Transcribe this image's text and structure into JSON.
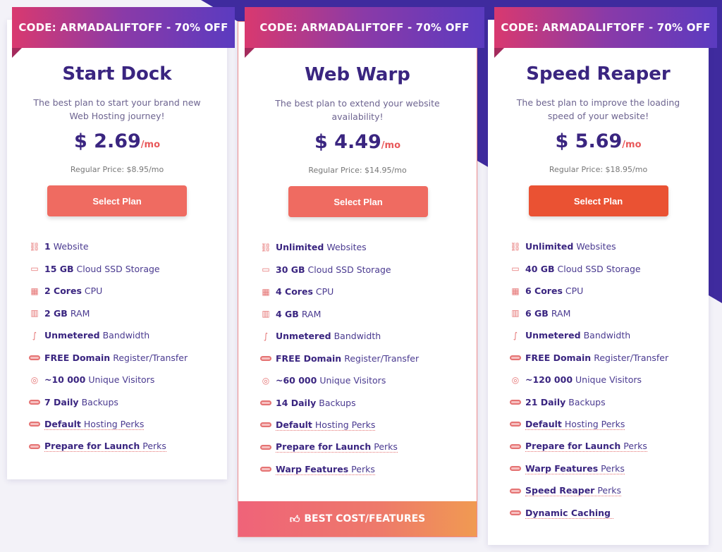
{
  "colors": {
    "accent": "#ef6b61",
    "title": "#3a2580",
    "banner_start": "#d9396f",
    "banner_end": "#5b3bc0",
    "background_shape": "#3f2b9e"
  },
  "plans": [
    {
      "banner": "CODE: ARMADALIFTOFF - 70% OFF",
      "name": "Start Dock",
      "desc": "The best plan to start your brand new Web Hosting journey!",
      "price": "$ 2.69",
      "per": "/mo",
      "regular": "Regular Price: $8.95/mo",
      "button": "Select Plan",
      "features": [
        {
          "icon": "sitemap-icon",
          "bold": "1",
          "text": "Website"
        },
        {
          "icon": "ssd-icon",
          "bold": "15 GB",
          "text": "Cloud SSD Storage"
        },
        {
          "icon": "cpu-icon",
          "bold": "2 Cores",
          "text": "CPU"
        },
        {
          "icon": "ram-icon",
          "bold": "2 GB",
          "text": "RAM"
        },
        {
          "icon": "cable-icon",
          "bold": "Unmetered",
          "text": "Bandwidth"
        },
        {
          "icon": "free-tag-icon",
          "bold": "FREE Domain",
          "text": "Register/Transfer"
        },
        {
          "icon": "visitor-icon",
          "bold": "~10 000",
          "text": "Unique Visitors"
        },
        {
          "icon": "free-tag-icon",
          "bold": "7 Daily",
          "text": "Backups"
        },
        {
          "icon": "free-tag-icon",
          "bold": "Default",
          "text": "Hosting Perks",
          "perk": true
        },
        {
          "icon": "free-tag-icon",
          "bold": "Prepare for Launch",
          "text": "Perks",
          "perk": true
        }
      ]
    },
    {
      "banner": "CODE: ARMADALIFTOFF - 70% OFF",
      "name": "Web Warp",
      "desc": "The best plan to extend your website availability!",
      "price": "$ 4.49",
      "per": "/mo",
      "regular": "Regular Price: $14.95/mo",
      "button": "Select Plan",
      "footer": "BEST COST/FEATURES",
      "features": [
        {
          "icon": "sitemap-icon",
          "bold": "Unlimited",
          "text": "Websites"
        },
        {
          "icon": "ssd-icon",
          "bold": "30 GB",
          "text": "Cloud SSD Storage"
        },
        {
          "icon": "cpu-icon",
          "bold": "4 Cores",
          "text": "CPU"
        },
        {
          "icon": "ram-icon",
          "bold": "4 GB",
          "text": "RAM"
        },
        {
          "icon": "cable-icon",
          "bold": "Unmetered",
          "text": "Bandwidth"
        },
        {
          "icon": "free-tag-icon",
          "bold": "FREE Domain",
          "text": "Register/Transfer"
        },
        {
          "icon": "visitor-icon",
          "bold": "~60 000",
          "text": "Unique Visitors"
        },
        {
          "icon": "free-tag-icon",
          "bold": "14 Daily",
          "text": "Backups"
        },
        {
          "icon": "free-tag-icon",
          "bold": "Default",
          "text": "Hosting Perks",
          "perk": true
        },
        {
          "icon": "free-tag-icon",
          "bold": "Prepare for Launch",
          "text": "Perks",
          "perk": true
        },
        {
          "icon": "free-tag-icon",
          "bold": "Warp Features",
          "text": "Perks",
          "perk": true
        }
      ]
    },
    {
      "banner": "CODE: ARMADALIFTOFF - 70% OFF",
      "name": "Speed Reaper",
      "desc": "The best plan to improve the loading speed of your website!",
      "price": "$ 5.69",
      "per": "/mo",
      "regular": "Regular Price: $18.95/mo",
      "button": "Select Plan",
      "features": [
        {
          "icon": "sitemap-icon",
          "bold": "Unlimited",
          "text": "Websites"
        },
        {
          "icon": "ssd-icon",
          "bold": "40 GB",
          "text": "Cloud SSD Storage"
        },
        {
          "icon": "cpu-icon",
          "bold": "6 Cores",
          "text": "CPU"
        },
        {
          "icon": "ram-icon",
          "bold": "6 GB",
          "text": "RAM"
        },
        {
          "icon": "cable-icon",
          "bold": "Unmetered",
          "text": "Bandwidth"
        },
        {
          "icon": "free-tag-icon",
          "bold": "FREE Domain",
          "text": "Register/Transfer"
        },
        {
          "icon": "visitor-icon",
          "bold": "~120 000",
          "text": "Unique Visitors"
        },
        {
          "icon": "free-tag-icon",
          "bold": "21 Daily",
          "text": "Backups"
        },
        {
          "icon": "free-tag-icon",
          "bold": "Default",
          "text": "Hosting Perks",
          "perk": true
        },
        {
          "icon": "free-tag-icon",
          "bold": "Prepare for Launch",
          "text": "Perks",
          "perk": true
        },
        {
          "icon": "free-tag-icon",
          "bold": "Warp Features",
          "text": "Perks",
          "perk": true
        },
        {
          "icon": "free-tag-icon",
          "bold": "Speed Reaper",
          "text": "Perks",
          "perk": true
        },
        {
          "icon": "free-tag-icon",
          "bold": "Dynamic Caching",
          "text": "",
          "perk": true
        }
      ]
    }
  ]
}
